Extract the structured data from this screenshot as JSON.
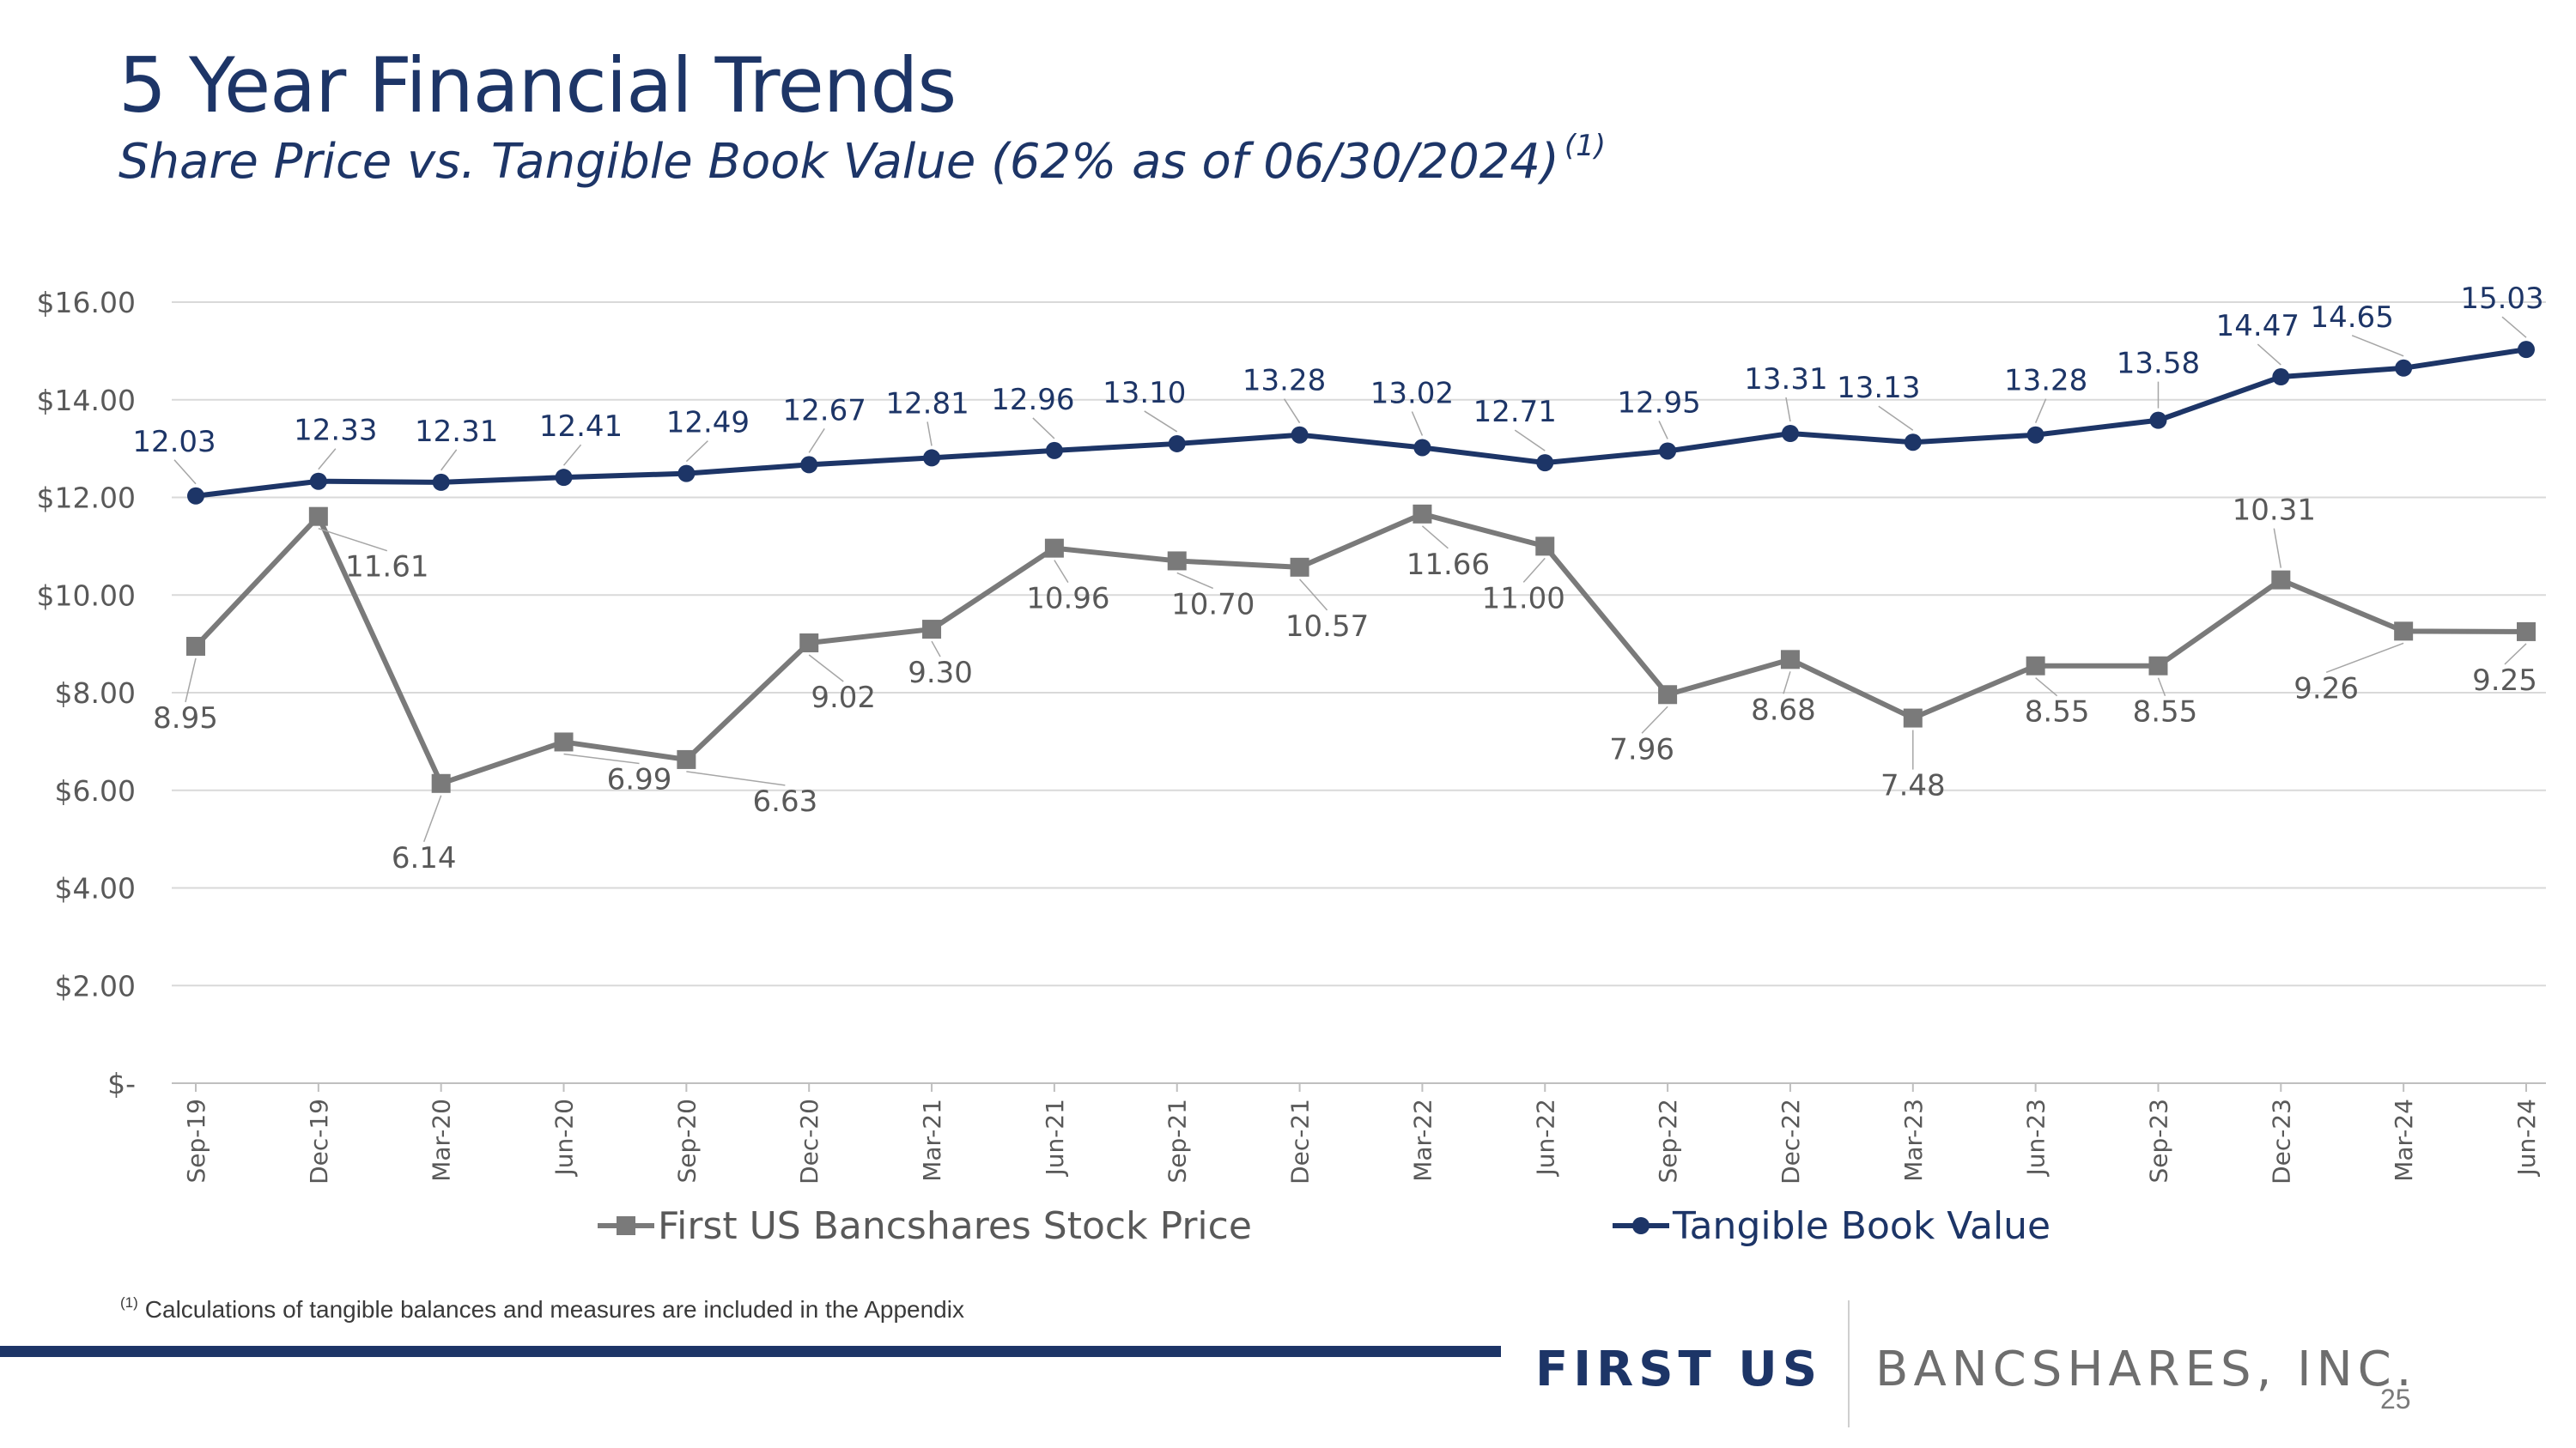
{
  "header": {
    "title": "5 Year Financial Trends",
    "subtitle": "Share Price vs. Tangible Book Value (62% as of 06/30/2024)",
    "subtitle_marker": "(1)"
  },
  "footer": {
    "footnote_marker": "(1)",
    "footnote": "Calculations of tangible balances and measures are included in the Appendix",
    "brand_bold": "FIRST US",
    "brand_light": "BANCSHARES, INC.",
    "page_number": "25"
  },
  "colors": {
    "navy": "#1d3567",
    "gray_series": "#7a7a7a",
    "grid": "#d9d9d9"
  },
  "chart_data": {
    "type": "line",
    "title": "5 Year Financial Trends",
    "xlabel": "",
    "ylabel": "",
    "ylim": [
      0,
      16
    ],
    "y_ticks": [
      0,
      2,
      4,
      6,
      8,
      10,
      12,
      14,
      16
    ],
    "y_tick_labels": [
      "$-",
      "$2.00",
      "$4.00",
      "$6.00",
      "$8.00",
      "$10.00",
      "$12.00",
      "$14.00",
      "$16.00"
    ],
    "grid": true,
    "legend_position": "bottom",
    "categories": [
      "Sep-19",
      "Dec-19",
      "Mar-20",
      "Jun-20",
      "Sep-20",
      "Dec-20",
      "Mar-21",
      "Jun-21",
      "Sep-21",
      "Dec-21",
      "Mar-22",
      "Jun-22",
      "Sep-22",
      "Dec-22",
      "Mar-23",
      "Jun-23",
      "Sep-23",
      "Dec-23",
      "Mar-24",
      "Jun-24"
    ],
    "series": [
      {
        "name": "First US Bancshares Stock Price",
        "marker": "square",
        "color": "#7a7a7a",
        "values": [
          8.95,
          11.61,
          6.14,
          6.99,
          6.63,
          9.02,
          9.3,
          10.96,
          10.7,
          10.57,
          11.66,
          11.0,
          7.96,
          8.68,
          7.48,
          8.55,
          8.55,
          10.31,
          9.26,
          9.25
        ],
        "labels": [
          "8.95",
          "11.61",
          "6.14",
          "6.99",
          "6.63",
          "9.02",
          "9.30",
          "10.96",
          "10.70",
          "10.57",
          "11.66",
          "11.00",
          "7.96",
          "8.68",
          "7.48",
          "8.55",
          "8.55",
          "10.31",
          "9.26",
          "9.25"
        ]
      },
      {
        "name": "Tangible Book Value",
        "marker": "circle",
        "color": "#1d3567",
        "values": [
          12.03,
          12.33,
          12.31,
          12.41,
          12.49,
          12.67,
          12.81,
          12.96,
          13.1,
          13.28,
          13.02,
          12.71,
          12.95,
          13.31,
          13.13,
          13.28,
          13.58,
          14.47,
          14.65,
          15.03
        ],
        "labels": [
          "12.03",
          "12.33",
          "12.31",
          "12.41",
          "12.49",
          "12.67",
          "12.81",
          "12.96",
          "13.10",
          "13.28",
          "13.02",
          "12.71",
          "12.95",
          "13.31",
          "13.13",
          "13.28",
          "13.58",
          "14.47",
          "14.65",
          "15.03"
        ]
      }
    ]
  }
}
